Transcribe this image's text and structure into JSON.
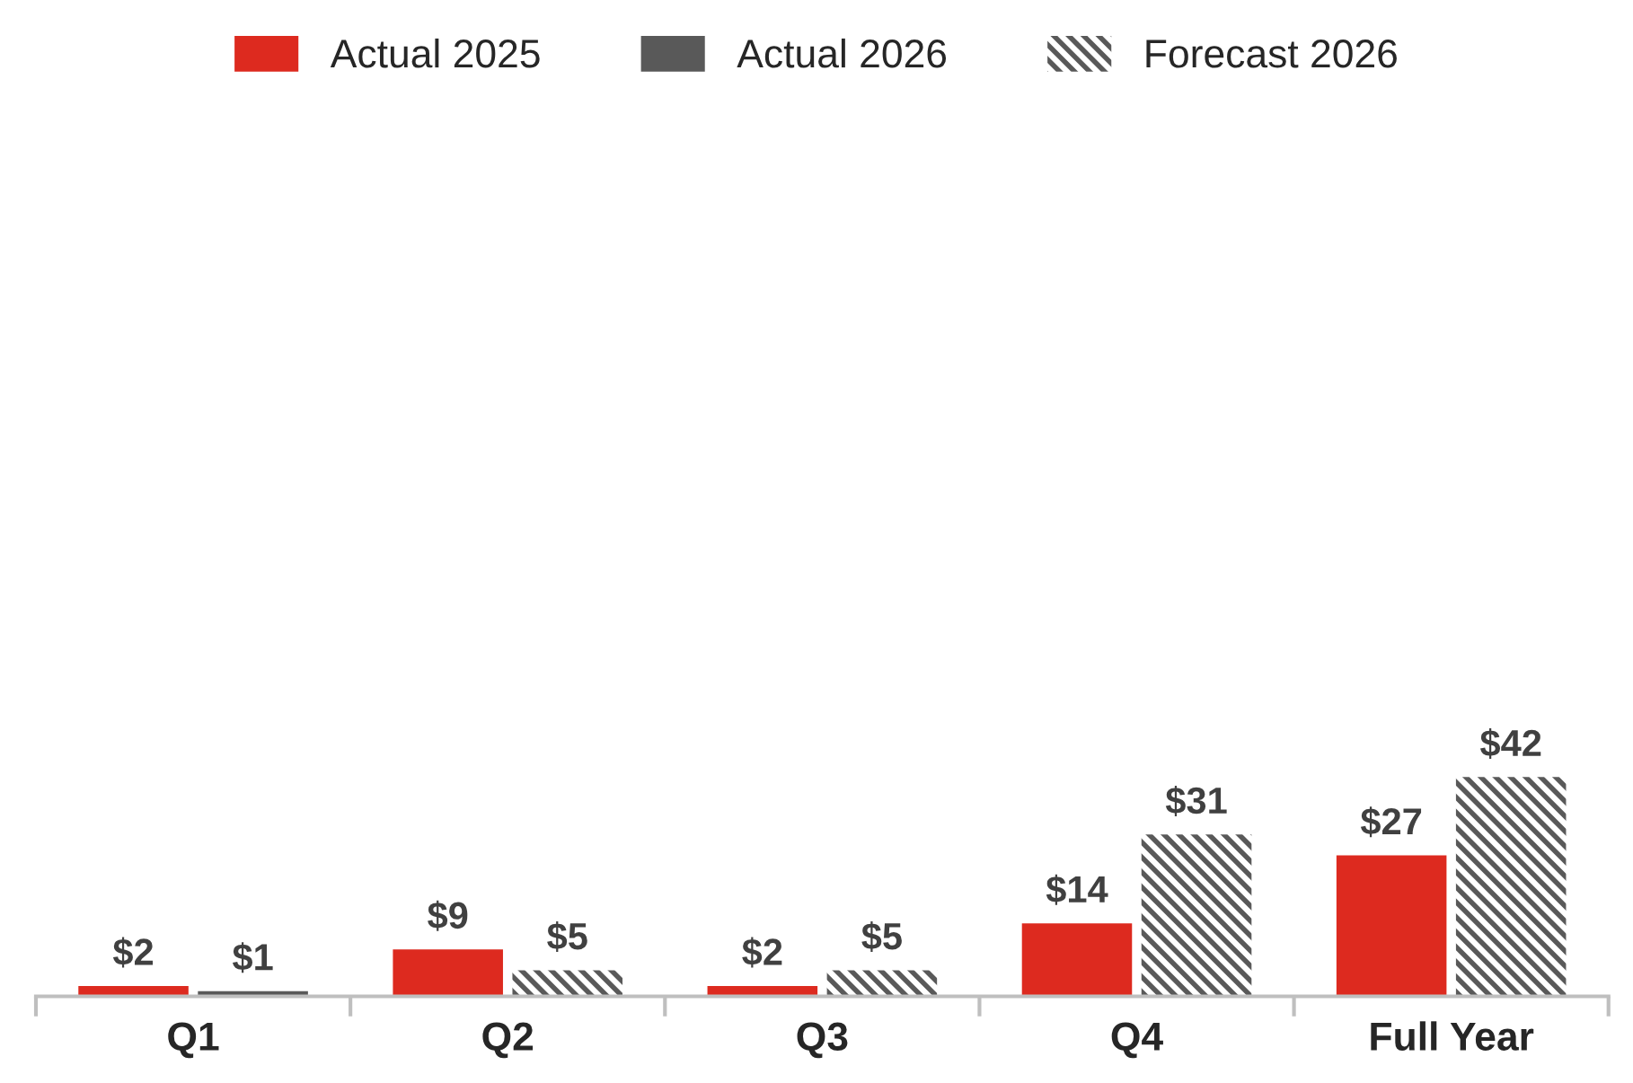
{
  "chart_data": {
    "type": "bar",
    "categories": [
      "Q1",
      "Q2",
      "Q3",
      "Q4",
      "Full Year"
    ],
    "series": [
      {
        "name": "Actual 2025",
        "color": "#dd2a1f",
        "values": [
          2,
          9,
          2,
          14,
          27
        ],
        "value_labels": [
          "$2",
          "$9",
          "$2",
          "$14",
          "$27"
        ]
      },
      {
        "name": "Actual 2026",
        "color": "#595959",
        "values": [
          1,
          null,
          null,
          null,
          null
        ],
        "value_labels": [
          "$1",
          null,
          null,
          null,
          null
        ]
      },
      {
        "name": "Forecast 2026",
        "color": "#595959",
        "values": [
          null,
          5,
          5,
          31,
          42
        ],
        "value_labels": [
          null,
          "$5",
          "$5",
          "$31",
          "$42"
        ]
      }
    ],
    "legend": "top",
    "grid": false
  }
}
